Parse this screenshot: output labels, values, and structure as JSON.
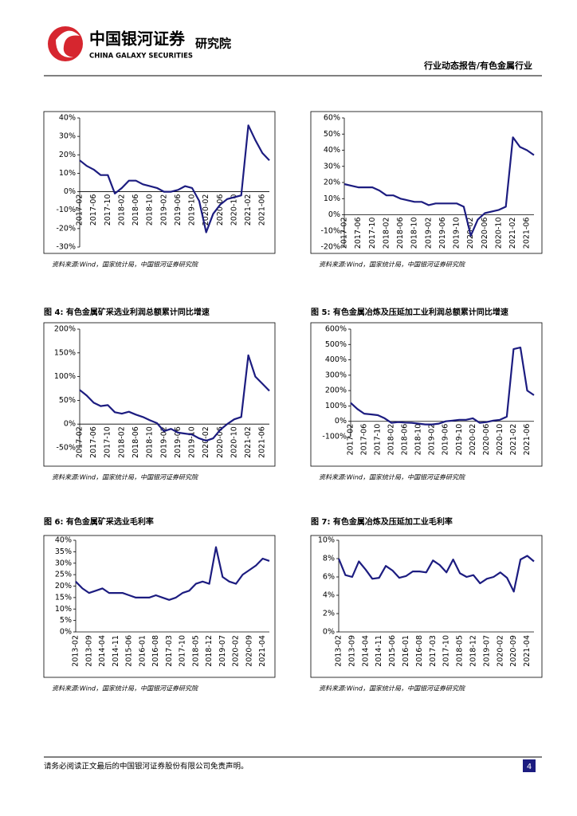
{
  "header": {
    "logo_cn": "中国银河证券",
    "logo_en": "CHINA GALAXY SECURITIES",
    "institute": "研究院",
    "report": "行业动态报告/有色金属行业"
  },
  "chart_data": [
    {
      "type": "line",
      "source": "资料来源:Wind，国家统计局，中国银河证券研究院",
      "categories": [
        "2017-02",
        null,
        "2017-06",
        null,
        "2017-10",
        null,
        "2018-02",
        null,
        "2018-06",
        null,
        "2018-10",
        null,
        "2019-02",
        null,
        "2019-06",
        null,
        "2019-10",
        null,
        "2020-02",
        null,
        "2020-06",
        null,
        "2020-10",
        null,
        "2021-02",
        null,
        "2021-06",
        null
      ],
      "series": [
        {
          "color": "#1c1c80",
          "values": [
            17,
            14,
            12,
            9,
            9,
            -1,
            2,
            6,
            6,
            4,
            3,
            2,
            0,
            0,
            1,
            3,
            2,
            -5,
            -22,
            -12,
            -7,
            -4,
            -3,
            -2,
            36,
            28,
            21,
            17
          ]
        }
      ],
      "ylim": [
        -30,
        40
      ],
      "yticks": [
        {
          "value": -30,
          "label": "-30%"
        },
        {
          "value": -20,
          "label": "-20%"
        },
        {
          "value": -10,
          "label": "-10%"
        },
        {
          "value": 0,
          "label": "0%"
        },
        {
          "value": 10,
          "label": "10%"
        },
        {
          "value": 20,
          "label": "20%"
        },
        {
          "value": 30,
          "label": "30%"
        },
        {
          "value": 40,
          "label": "40%"
        }
      ]
    },
    {
      "type": "line",
      "source": "资料来源:Wind，国家统计局，中国银河证券研究院",
      "categories": [
        "2017-02",
        null,
        "2017-06",
        null,
        "2017-10",
        null,
        "2018-02",
        null,
        "2018-06",
        null,
        "2018-10",
        null,
        "2019-02",
        null,
        "2019-06",
        null,
        "2019-10",
        null,
        "2020-02",
        null,
        "2020-06",
        null,
        "2020-10",
        null,
        "2021-02",
        null,
        "2021-06",
        null
      ],
      "series": [
        {
          "color": "#1c1c80",
          "values": [
            19,
            18,
            17,
            17,
            17,
            15,
            12,
            12,
            10,
            9,
            8,
            8,
            6,
            7,
            7,
            7,
            7,
            5,
            -13,
            -3,
            1,
            2,
            3,
            5,
            48,
            42,
            40,
            37
          ]
        }
      ],
      "ylim": [
        -20,
        60
      ],
      "yticks": [
        {
          "value": -20,
          "label": "-20%"
        },
        {
          "value": -10,
          "label": "-10%"
        },
        {
          "value": 0,
          "label": "0%"
        },
        {
          "value": 10,
          "label": "10%"
        },
        {
          "value": 20,
          "label": "20%"
        },
        {
          "value": 30,
          "label": "30%"
        },
        {
          "value": 40,
          "label": "40%"
        },
        {
          "value": 50,
          "label": "50%"
        },
        {
          "value": 60,
          "label": "60%"
        }
      ]
    },
    {
      "type": "line",
      "title": "图 4: 有色金属矿采选业利润总额累计同比增速",
      "source": "资料来源:Wind，国家统计局，中国银河证券研究院",
      "categories": [
        "2017-02",
        null,
        "2017-06",
        null,
        "2017-10",
        null,
        "2018-02",
        null,
        "2018-06",
        null,
        "2018-10",
        null,
        "2019-02",
        null,
        "2019-06",
        null,
        "2019-10",
        null,
        "2020-02",
        null,
        "2020-06",
        null,
        "2020-10",
        null,
        "2021-02",
        null,
        "2021-06",
        null
      ],
      "series": [
        {
          "color": "#1c1c80",
          "values": [
            72,
            60,
            45,
            38,
            40,
            25,
            22,
            26,
            20,
            15,
            8,
            2,
            -15,
            -10,
            -18,
            -20,
            -22,
            -30,
            -35,
            -30,
            -12,
            0,
            10,
            15,
            145,
            100,
            85,
            70
          ]
        }
      ],
      "ylim": [
        -50,
        200
      ],
      "yticks": [
        {
          "value": -50,
          "label": "-50%"
        },
        {
          "value": 0,
          "label": "0%"
        },
        {
          "value": 50,
          "label": "50%"
        },
        {
          "value": 100,
          "label": "100%"
        },
        {
          "value": 150,
          "label": "150%"
        },
        {
          "value": 200,
          "label": "200%"
        }
      ]
    },
    {
      "type": "line",
      "title": "图 5: 有色金属冶炼及压延加工业利润总额累计同比增速",
      "source": "资料来源:Wind，国家统计局，中国银河证券研究院",
      "categories": [
        "2017-02",
        null,
        "2017-06",
        null,
        "2017-10",
        null,
        "2018-02",
        null,
        "2018-06",
        null,
        "2018-10",
        null,
        "2019-02",
        null,
        "2019-06",
        null,
        "2019-10",
        null,
        "2020-02",
        null,
        "2020-06",
        null,
        "2020-10",
        null,
        "2021-02",
        null,
        "2021-06",
        null
      ],
      "series": [
        {
          "color": "#1c1c80",
          "values": [
            120,
            80,
            50,
            45,
            40,
            20,
            -10,
            -5,
            -8,
            -10,
            -15,
            -20,
            -20,
            -15,
            0,
            5,
            10,
            10,
            20,
            -10,
            -5,
            5,
            10,
            30,
            470,
            480,
            200,
            170
          ]
        }
      ],
      "ylim": [
        -100,
        600
      ],
      "yticks": [
        {
          "value": -100,
          "label": "-100%"
        },
        {
          "value": 0,
          "label": "0%"
        },
        {
          "value": 100,
          "label": "100%"
        },
        {
          "value": 200,
          "label": "200%"
        },
        {
          "value": 300,
          "label": "300%"
        },
        {
          "value": 400,
          "label": "400%"
        },
        {
          "value": 500,
          "label": "500%"
        },
        {
          "value": 600,
          "label": "600%"
        }
      ]
    },
    {
      "type": "line",
      "title": "图 6: 有色金属矿采选业毛利率",
      "source": "资料来源:Wind，国家统计局，中国银河证券研究院",
      "categories": [
        "2013-02",
        null,
        "2013-09",
        null,
        "2014-04",
        null,
        "2014-11",
        null,
        "2015-06",
        null,
        "2016-01",
        null,
        "2016-08",
        null,
        "2017-03",
        null,
        "2017-10",
        null,
        "2018-05",
        null,
        "2018-12",
        null,
        "2019-07",
        null,
        "2020-02",
        null,
        "2020-09",
        null,
        "2021-04",
        null
      ],
      "series": [
        {
          "color": "#1c1c80",
          "values": [
            22,
            19,
            17,
            18,
            19,
            17,
            17,
            17,
            16,
            15,
            15,
            15,
            16,
            15,
            14,
            15,
            17,
            18,
            21,
            22,
            21,
            37,
            24,
            22,
            21,
            25,
            27,
            29,
            32,
            31
          ]
        }
      ],
      "ylim": [
        0,
        40
      ],
      "yticks": [
        {
          "value": 0,
          "label": "0%"
        },
        {
          "value": 5,
          "label": "5%"
        },
        {
          "value": 10,
          "label": "10%"
        },
        {
          "value": 15,
          "label": "15%"
        },
        {
          "value": 20,
          "label": "20%"
        },
        {
          "value": 25,
          "label": "25%"
        },
        {
          "value": 30,
          "label": "30%"
        },
        {
          "value": 35,
          "label": "35%"
        },
        {
          "value": 40,
          "label": "40%"
        }
      ]
    },
    {
      "type": "line",
      "title": "图 7: 有色金属冶炼及压延加工业毛利率",
      "source": "资料来源:Wind，国家统计局，中国银河证券研究院",
      "categories": [
        "2013-02",
        null,
        "2013-09",
        null,
        "2014-04",
        null,
        "2014-11",
        null,
        "2015-06",
        null,
        "2016-01",
        null,
        "2016-08",
        null,
        "2017-03",
        null,
        "2017-10",
        null,
        "2018-05",
        null,
        "2018-12",
        null,
        "2019-07",
        null,
        "2020-02",
        null,
        "2020-09",
        null,
        "2021-04",
        null
      ],
      "series": [
        {
          "color": "#1c1c80",
          "values": [
            8.0,
            6.2,
            6.0,
            7.7,
            6.8,
            5.8,
            5.9,
            7.2,
            6.7,
            5.9,
            6.1,
            6.6,
            6.6,
            6.5,
            7.8,
            7.3,
            6.5,
            7.9,
            6.4,
            6.0,
            6.2,
            5.3,
            5.8,
            6.0,
            6.5,
            5.9,
            4.4,
            7.9,
            8.3,
            7.7
          ]
        }
      ],
      "ylim": [
        0,
        10
      ],
      "yticks": [
        {
          "value": 0,
          "label": "0%"
        },
        {
          "value": 2,
          "label": "2%"
        },
        {
          "value": 4,
          "label": "4%"
        },
        {
          "value": 6,
          "label": "6%"
        },
        {
          "value": 8,
          "label": "8%"
        },
        {
          "value": 10,
          "label": "10%"
        }
      ]
    }
  ],
  "footer": {
    "disclaimer": "请务必阅读正文最后的中国银河证券股份有限公司免责声明。",
    "page_number": 4
  }
}
